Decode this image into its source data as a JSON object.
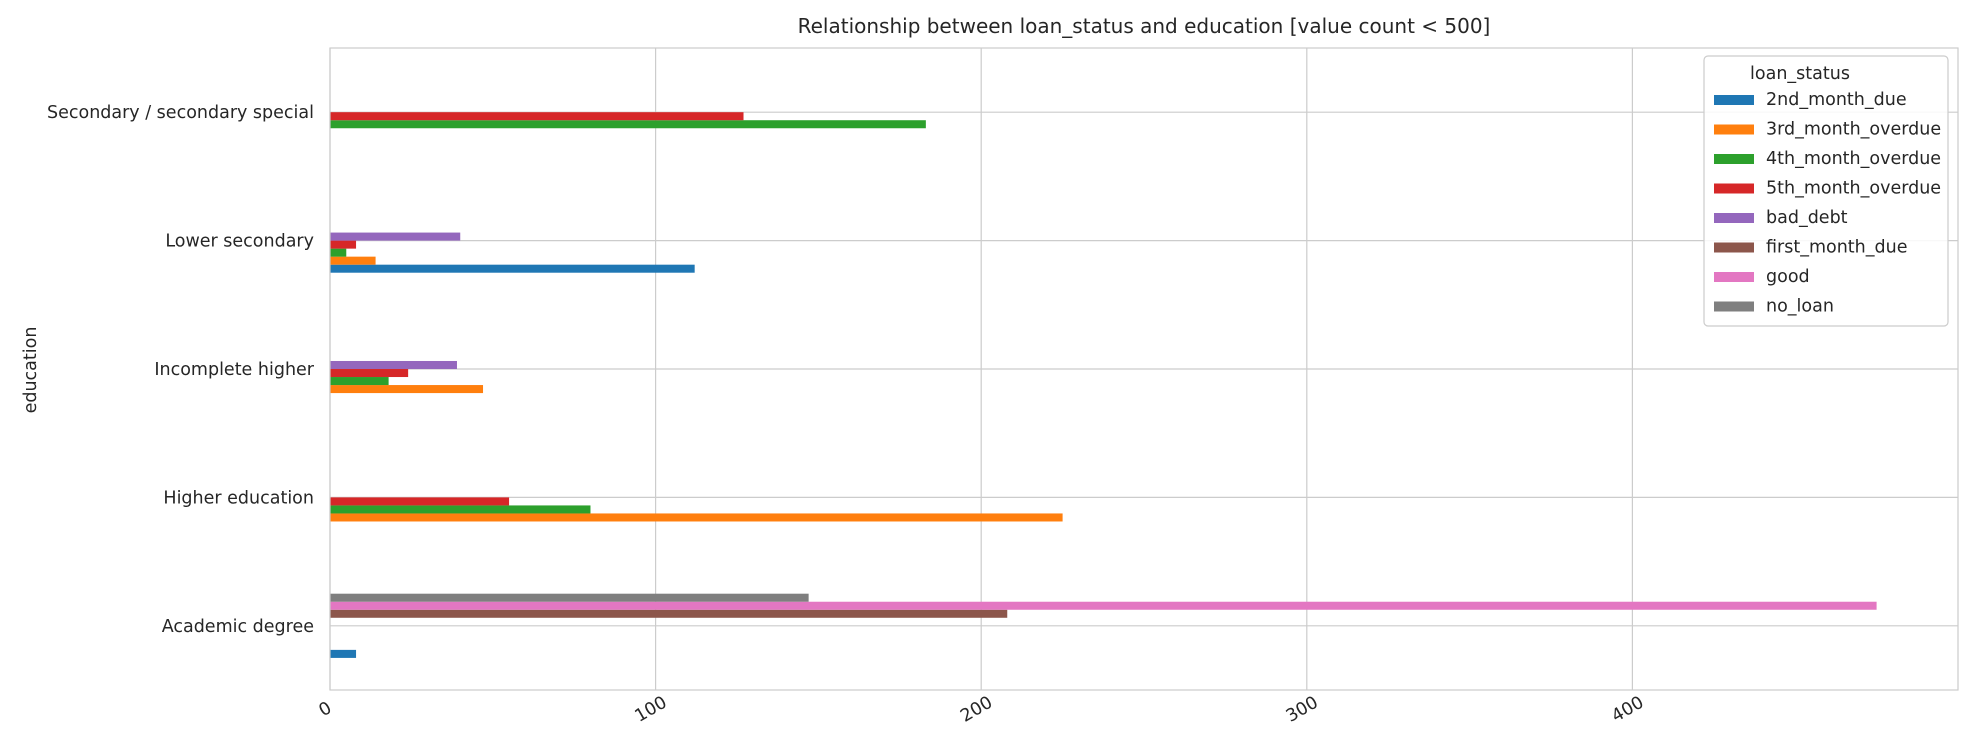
{
  "chart_data": {
    "type": "bar",
    "orientation": "horizontal",
    "title": "Relationship between loan_status and education [value count < 500]",
    "ylabel": "education",
    "xlabel": "",
    "xlim": [
      0,
      500
    ],
    "xticks": [
      0,
      100,
      200,
      300,
      400
    ],
    "grid": true,
    "legend": {
      "title": "loan_status",
      "placement": "top-right"
    },
    "categories": [
      "Academic degree",
      "Higher education",
      "Incomplete higher",
      "Lower secondary",
      "Secondary / secondary special"
    ],
    "series": [
      {
        "name": "2nd_month_due",
        "color": "#1f77b4",
        "values": [
          8,
          null,
          null,
          112,
          null
        ]
      },
      {
        "name": "3rd_month_overdue",
        "color": "#ff7f0e",
        "values": [
          null,
          225,
          47,
          14,
          null
        ]
      },
      {
        "name": "4th_month_overdue",
        "color": "#2ca02c",
        "values": [
          null,
          80,
          18,
          5,
          183
        ]
      },
      {
        "name": "5th_month_overdue",
        "color": "#d62728",
        "values": [
          null,
          55,
          24,
          8,
          127
        ]
      },
      {
        "name": "bad_debt",
        "color": "#9467bd",
        "values": [
          null,
          null,
          39,
          40,
          null
        ]
      },
      {
        "name": "first_month_due",
        "color": "#8c564b",
        "values": [
          208,
          null,
          null,
          null,
          null
        ]
      },
      {
        "name": "good",
        "color": "#e377c2",
        "values": [
          475,
          null,
          null,
          null,
          null
        ]
      },
      {
        "name": "no_loan",
        "color": "#7f7f7f",
        "values": [
          147,
          null,
          null,
          null,
          null
        ]
      }
    ]
  }
}
